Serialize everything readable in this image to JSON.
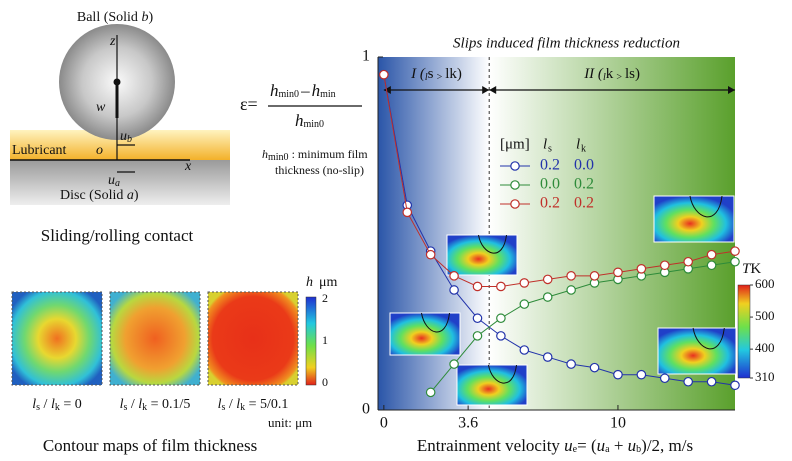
{
  "contact": {
    "ball": [
      "Ball (Solid ",
      "b",
      ")"
    ],
    "z": "z",
    "w": "w",
    "ub": [
      "u",
      "b"
    ],
    "o": "o",
    "x": "x",
    "ua": [
      "u",
      "a"
    ],
    "lubricant": "Lubricant",
    "disc": [
      "Disc (Solid ",
      "a",
      ")"
    ],
    "caption": "Sliding/rolling contact"
  },
  "equation": {
    "lhs": "ε=",
    "num": [
      "h",
      "min0",
      "–",
      "h",
      "min"
    ],
    "den": [
      "h",
      "min0"
    ],
    "note1": [
      "h",
      "min0",
      " : minimum film"
    ],
    "note2": "thickness (no-slip)"
  },
  "contour": {
    "colorbar_title": [
      "h",
      "μm"
    ],
    "ticks": [
      "2",
      "1",
      "0"
    ],
    "labels": [
      [
        "l",
        "s",
        " / ",
        "l",
        "k",
        " = 0"
      ],
      [
        "l",
        "s",
        " / ",
        "l",
        "k",
        " = 0.1/5"
      ],
      [
        "l",
        "s",
        " / ",
        "l",
        "k",
        " = 5/0.1"
      ]
    ],
    "unit": "unit: μm",
    "caption": "Contour maps of film thickness"
  },
  "chart_data": {
    "type": "line",
    "title": "Slips induced film thickness reduction",
    "x_label": [
      "Entrainment velocity ",
      "u",
      "e",
      "= (",
      "u",
      "a",
      " + ",
      "u",
      "b",
      ")/2, m/s"
    ],
    "xlim": [
      -0.25,
      15
    ],
    "ylim": [
      0,
      1
    ],
    "xticks": [
      0,
      3.6,
      10
    ],
    "yticks": [
      0,
      1
    ],
    "boundary_x": 4.5,
    "regions": [
      [
        "I (",
        "l",
        "s",
        " > ",
        "l",
        "k",
        ")"
      ],
      [
        "II (",
        "l",
        "k",
        " > ",
        "l",
        "s",
        ")"
      ]
    ],
    "legend_header": [
      "[μm]",
      "l",
      "s",
      "l",
      "k"
    ],
    "x": [
      0,
      1,
      2,
      3,
      4,
      5,
      6,
      7,
      8,
      9,
      10,
      11,
      12,
      13,
      14,
      15
    ],
    "series": [
      {
        "ls": "0.2",
        "lk": "0.0",
        "color": "#2233aa",
        "values": [
          0.95,
          0.58,
          0.45,
          0.34,
          0.26,
          0.21,
          0.17,
          0.15,
          0.13,
          0.12,
          0.1,
          0.1,
          0.09,
          0.08,
          0.08,
          0.07
        ]
      },
      {
        "ls": "0.0",
        "lk": "0.2",
        "color": "#2e8b3a",
        "values": [
          null,
          null,
          0.05,
          0.13,
          0.21,
          0.26,
          0.3,
          0.32,
          0.34,
          0.36,
          0.37,
          0.38,
          0.39,
          0.4,
          0.41,
          0.42
        ]
      },
      {
        "ls": "0.2",
        "lk": "0.2",
        "color": "#c0302a",
        "values": [
          0.95,
          0.56,
          0.44,
          0.38,
          0.35,
          0.35,
          0.36,
          0.37,
          0.38,
          0.38,
          0.39,
          0.4,
          0.41,
          0.42,
          0.44,
          0.45
        ]
      }
    ],
    "colorbar": {
      "title": [
        "T",
        "K"
      ],
      "lim": [
        310,
        600
      ],
      "ticks": [
        310,
        400,
        500,
        600
      ]
    }
  }
}
